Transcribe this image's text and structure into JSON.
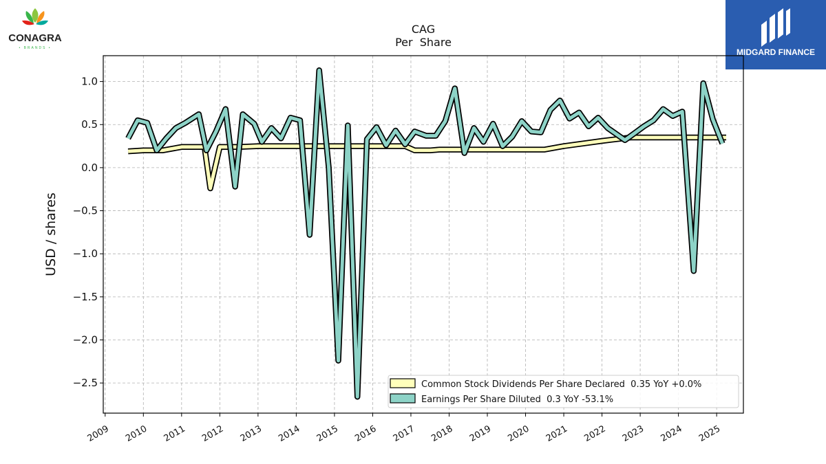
{
  "header": {
    "left_logo": {
      "name": "CONAGRA",
      "sub": "BRANDS",
      "colors": [
        "#e2231a",
        "#f7941d",
        "#8dc63f",
        "#39b54a",
        "#00a99d"
      ]
    },
    "right_logo": {
      "name": "MIDGARD FINANCE",
      "background": "#2a5db0"
    }
  },
  "chart_data": {
    "type": "line",
    "title": "CAG",
    "subtitle": "Per  Share",
    "xlabel": "",
    "ylabel": "USD / shares",
    "ylim": [
      -2.85,
      1.3
    ],
    "xlim": [
      2008.95,
      2025.7
    ],
    "yticks": [
      1.0,
      0.5,
      0.0,
      -0.5,
      -1.0,
      -1.5,
      -2.0,
      -2.5
    ],
    "ytick_labels": [
      "1.0",
      "0.5",
      "0.0",
      "−0.5",
      "−1.0",
      "−1.5",
      "−2.0",
      "−2.5"
    ],
    "xticks": [
      2009,
      2010,
      2011,
      2012,
      2013,
      2014,
      2015,
      2016,
      2017,
      2018,
      2019,
      2020,
      2021,
      2022,
      2023,
      2024,
      2025
    ],
    "xtick_labels": [
      "2009",
      "2010",
      "2011",
      "2012",
      "2013",
      "2014",
      "2015",
      "2016",
      "2017",
      "2018",
      "2019",
      "2020",
      "2021",
      "2022",
      "2023",
      "2024",
      "2025"
    ],
    "grid": true,
    "legend_position": "bottom-right",
    "series": [
      {
        "name": "Common Stock Dividends Per Share Declared  0.35 YoY +0.0%",
        "color": "#ffffbb",
        "x": [
          2009.6,
          2010.0,
          2010.5,
          2011.0,
          2011.5,
          2011.6,
          2011.75,
          2012.0,
          2012.5,
          2013.0,
          2013.5,
          2014.0,
          2015.0,
          2016.0,
          2016.5,
          2016.85,
          2017.1,
          2017.5,
          2017.75,
          2018.0,
          2019.0,
          2020.0,
          2020.5,
          2021.0,
          2022.0,
          2022.75,
          2023.0,
          2024.0,
          2025.0,
          2025.25
        ],
        "values": [
          0.19,
          0.2,
          0.2,
          0.24,
          0.24,
          0.24,
          -0.24,
          0.24,
          0.24,
          0.25,
          0.25,
          0.25,
          0.25,
          0.25,
          0.25,
          0.25,
          0.2,
          0.2,
          0.21,
          0.21,
          0.21,
          0.21,
          0.21,
          0.25,
          0.31,
          0.35,
          0.35,
          0.35,
          0.35,
          0.35
        ]
      },
      {
        "name": "Earnings Per Share Diluted  0.3 YoY -53.1%",
        "color": "#8dd3c7",
        "x": [
          2009.6,
          2009.85,
          2010.1,
          2010.35,
          2010.6,
          2010.85,
          2011.1,
          2011.45,
          2011.65,
          2011.9,
          2012.15,
          2012.4,
          2012.6,
          2012.9,
          2013.1,
          2013.35,
          2013.6,
          2013.85,
          2014.1,
          2014.35,
          2014.6,
          2014.85,
          2015.1,
          2015.35,
          2015.6,
          2015.85,
          2016.1,
          2016.35,
          2016.6,
          2016.85,
          2017.1,
          2017.4,
          2017.65,
          2017.9,
          2018.15,
          2018.4,
          2018.65,
          2018.9,
          2019.15,
          2019.4,
          2019.65,
          2019.9,
          2020.15,
          2020.4,
          2020.65,
          2020.9,
          2021.15,
          2021.4,
          2021.65,
          2021.9,
          2022.15,
          2022.6,
          2022.85,
          2023.1,
          2023.35,
          2023.6,
          2023.85,
          2024.1,
          2024.4,
          2024.65,
          2024.9,
          2025.15
        ],
        "values": [
          0.34,
          0.55,
          0.52,
          0.2,
          0.34,
          0.46,
          0.52,
          0.62,
          0.2,
          0.42,
          0.68,
          -0.22,
          0.62,
          0.51,
          0.3,
          0.46,
          0.34,
          0.58,
          0.55,
          -0.78,
          1.13,
          0.0,
          -2.24,
          0.49,
          -2.66,
          0.33,
          0.47,
          0.26,
          0.43,
          0.27,
          0.42,
          0.37,
          0.37,
          0.54,
          0.92,
          0.17,
          0.46,
          0.3,
          0.51,
          0.25,
          0.36,
          0.54,
          0.42,
          0.41,
          0.67,
          0.78,
          0.57,
          0.64,
          0.48,
          0.58,
          0.46,
          0.32,
          0.4,
          0.48,
          0.55,
          0.68,
          0.6,
          0.65,
          -1.2,
          0.98,
          0.56,
          0.28
        ]
      }
    ]
  }
}
